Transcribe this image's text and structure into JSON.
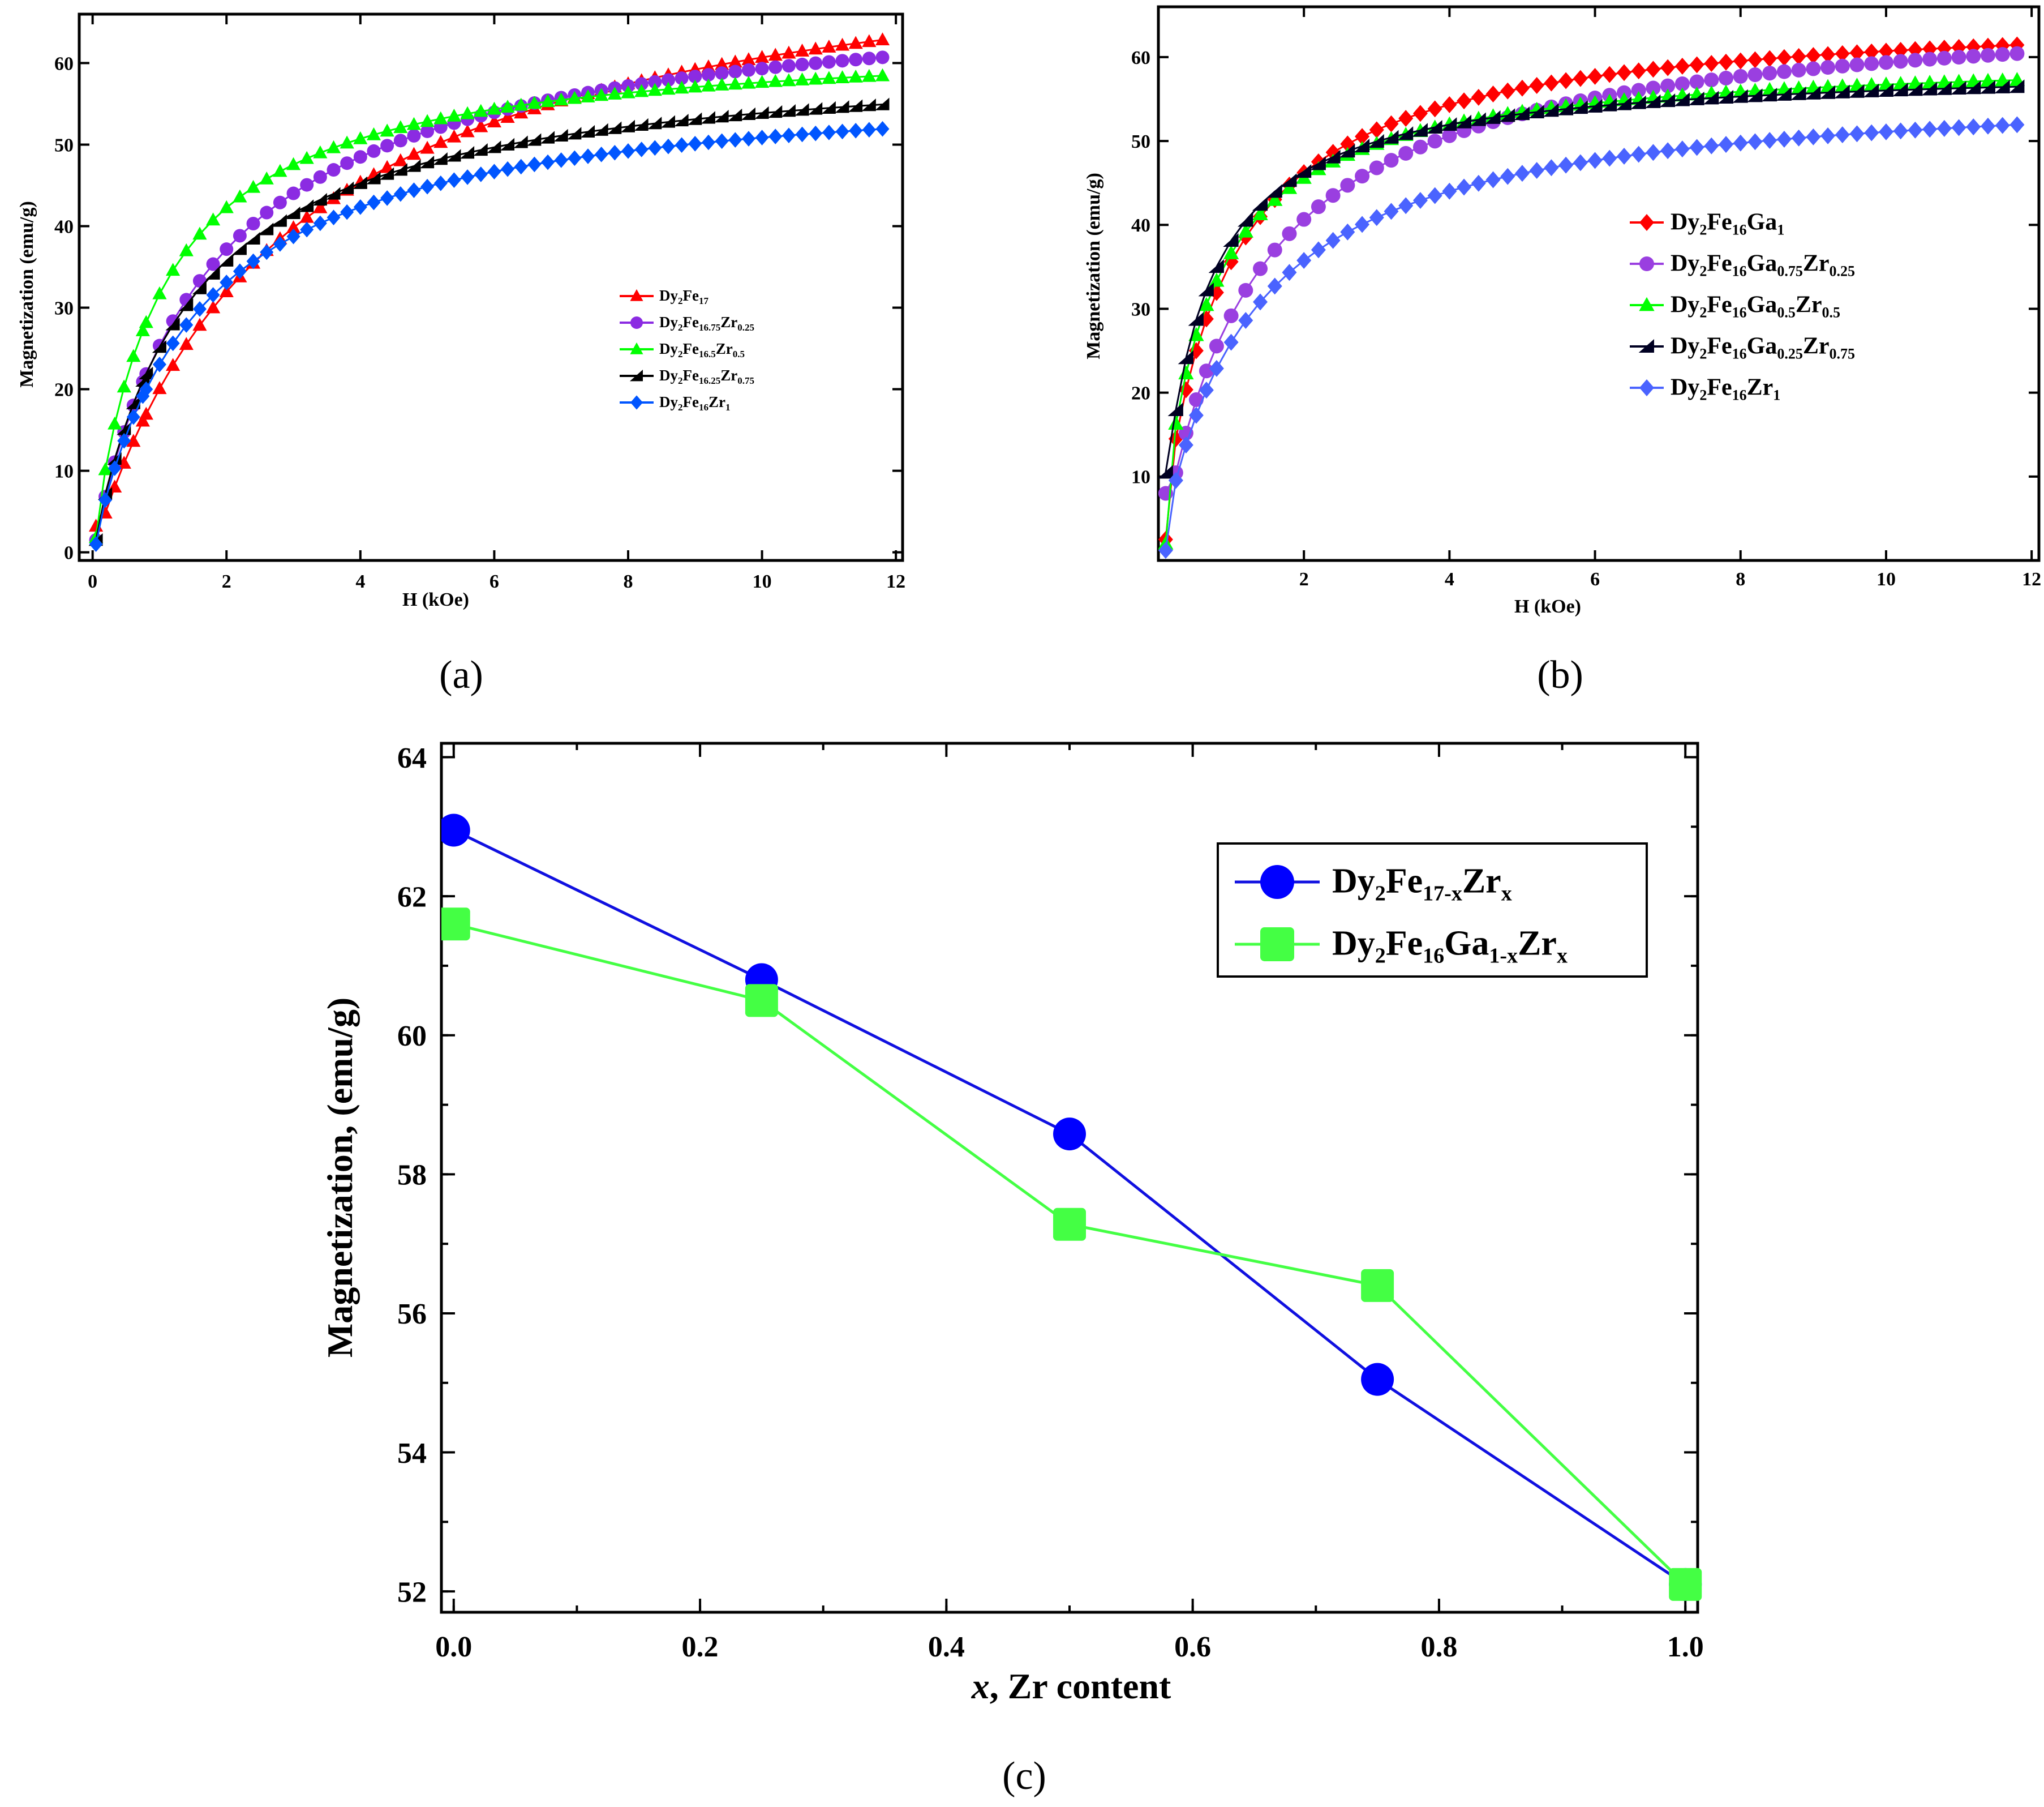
{
  "figure_captions": {
    "a": "(a)",
    "b": "(b)",
    "c": "(c)"
  },
  "chart_data": [
    {
      "id": "a",
      "type": "line",
      "title": "",
      "xlabel": "H (kOe)",
      "ylabel": "Magnetization (emu/g)",
      "xlim": [
        -0.2,
        12.1
      ],
      "ylim": [
        -1,
        66
      ],
      "xticks": [
        0,
        2,
        4,
        6,
        8,
        10,
        12
      ],
      "yticks": [
        0,
        10,
        20,
        30,
        40,
        50,
        60
      ],
      "legend_position": "center-right",
      "series": [
        {
          "name": "Dy2Fe17",
          "base": "Dy",
          "parts": [
            [
              "Dy",
              ""
            ],
            [
              "2",
              "sub"
            ],
            [
              "Fe",
              ""
            ],
            [
              "17",
              "sub"
            ]
          ],
          "color": "#ff0000",
          "marker": "triangle",
          "msat": 77.5,
          "hk": 2.9,
          "first": 3.2,
          "mend": 63.0
        },
        {
          "name": "Dy2Fe16.75Zr0.25",
          "parts": [
            [
              "Dy",
              ""
            ],
            [
              "2",
              "sub"
            ],
            [
              "Fe",
              ""
            ],
            [
              "16.75",
              "sub"
            ],
            [
              "Zr",
              ""
            ],
            [
              "0.25",
              "sub"
            ]
          ],
          "color": "#8b2be2",
          "marker": "circle",
          "msat": 68.5,
          "hk": 1.75,
          "first": 1.5,
          "mend": 60.8
        },
        {
          "name": "Dy2Fe16.5Zr0.5",
          "parts": [
            [
              "Dy",
              ""
            ],
            [
              "2",
              "sub"
            ],
            [
              "Fe",
              ""
            ],
            [
              "16.5",
              "sub"
            ],
            [
              "Zr",
              ""
            ],
            [
              "0.5",
              "sub"
            ]
          ],
          "color": "#00ff00",
          "marker": "triangle",
          "msat": 63.5,
          "hk": 1.0,
          "first": 1.8,
          "mend": 58.5
        },
        {
          "name": "Dy2Fe16.25Zr0.75",
          "parts": [
            [
              "Dy",
              ""
            ],
            [
              "2",
              "sub"
            ],
            [
              "Fe",
              ""
            ],
            [
              "16.25",
              "sub"
            ],
            [
              "Zr",
              ""
            ],
            [
              "0.75",
              "sub"
            ]
          ],
          "color": "#000000",
          "marker": "triangle-left",
          "msat": 62.0,
          "hk": 1.45,
          "first": 1.5,
          "mend": 55.0
        },
        {
          "name": "Dy2Fe16Zr1",
          "parts": [
            [
              "Dy",
              ""
            ],
            [
              "2",
              "sub"
            ],
            [
              "Fe",
              ""
            ],
            [
              "16",
              "sub"
            ],
            [
              "Zr",
              ""
            ],
            [
              "1",
              "sub"
            ]
          ],
          "color": "#0055ff",
          "marker": "diamond",
          "msat": 58.5,
          "hk": 1.55,
          "first": 1.0,
          "mend": 52.0
        }
      ]
    },
    {
      "id": "b",
      "type": "line",
      "title": "",
      "xlabel": "H (kOe)",
      "ylabel": "Magnetization (emu/g)",
      "xlim": [
        0.0,
        12.1
      ],
      "ylim": [
        0,
        66
      ],
      "xticks": [
        2,
        4,
        6,
        8,
        10,
        12
      ],
      "yticks": [
        10,
        20,
        30,
        40,
        50,
        60
      ],
      "legend_position": "center-right",
      "series": [
        {
          "name": "Dy2Fe16Ga1",
          "parts": [
            [
              "Dy",
              ""
            ],
            [
              "2",
              "sub"
            ],
            [
              "Fe",
              ""
            ],
            [
              "16",
              "sub"
            ],
            [
              "Ga",
              ""
            ],
            [
              "1",
              "sub"
            ]
          ],
          "color": "#ff0000",
          "marker": "diamond",
          "msat": 66.0,
          "hk": 0.85,
          "first": 2.5,
          "mend": 61.5
        },
        {
          "name": "Dy2Fe16Ga0.75Zr0.25",
          "parts": [
            [
              "Dy",
              ""
            ],
            [
              "2",
              "sub"
            ],
            [
              "Fe",
              ""
            ],
            [
              "16",
              "sub"
            ],
            [
              "Ga",
              ""
            ],
            [
              "0.75",
              "sub"
            ],
            [
              "Zr",
              ""
            ],
            [
              "0.25",
              "sub"
            ]
          ],
          "color": "#9a3fe0",
          "marker": "circle",
          "msat": 66.5,
          "hk": 1.3,
          "first": 8.0,
          "mend": 60.5
        },
        {
          "name": "Dy2Fe16Ga0.5Zr0.5",
          "parts": [
            [
              "Dy",
              ""
            ],
            [
              "2",
              "sub"
            ],
            [
              "Fe",
              ""
            ],
            [
              "16",
              "sub"
            ],
            [
              "Ga",
              ""
            ],
            [
              "0.5",
              "sub"
            ],
            [
              "Zr",
              ""
            ],
            [
              "0.5",
              "sub"
            ]
          ],
          "color": "#00ff00",
          "marker": "triangle",
          "msat": 61.0,
          "hk": 0.65,
          "first": 2.0,
          "mend": 57.3
        },
        {
          "name": "Dy2Fe16Ga0.25Zr0.75",
          "parts": [
            [
              "Dy",
              ""
            ],
            [
              "2",
              "sub"
            ],
            [
              "Fe",
              ""
            ],
            [
              "16",
              "sub"
            ],
            [
              "Ga",
              ""
            ],
            [
              "0.25",
              "sub"
            ],
            [
              "Zr",
              ""
            ],
            [
              "0.75",
              "sub"
            ]
          ],
          "color": "#000022",
          "marker": "triangle-left",
          "msat": 59.0,
          "hk": 0.55,
          "first": 10.5,
          "mend": 56.5
        },
        {
          "name": "Dy2Fe16Zr1",
          "parts": [
            [
              "Dy",
              ""
            ],
            [
              "2",
              "sub"
            ],
            [
              "Fe",
              ""
            ],
            [
              "16",
              "sub"
            ],
            [
              "Zr",
              ""
            ],
            [
              "1",
              "sub"
            ]
          ],
          "color": "#4a63ff",
          "marker": "diamond",
          "msat": 58.0,
          "hk": 1.2,
          "first": 1.2,
          "mend": 52.0
        }
      ]
    },
    {
      "id": "c",
      "type": "line",
      "title": "",
      "xlabel": "x, Zr content",
      "ylabel": "Magnetization, (emu/g)",
      "xlim": [
        -0.01,
        1.01
      ],
      "ylim": [
        51.7,
        64.2
      ],
      "xticks": [
        0.0,
        0.2,
        0.4,
        0.6,
        0.8,
        1.0
      ],
      "xticklabels": [
        "0.0",
        "0.2",
        "0.4",
        "0.6",
        "0.8",
        "1.0"
      ],
      "yticks": [
        52,
        54,
        56,
        58,
        60,
        62,
        64
      ],
      "legend_position": "top-right",
      "x": [
        0.0,
        0.25,
        0.5,
        0.75,
        1.0
      ],
      "series": [
        {
          "name": "Dy2Fe17-xZrx",
          "parts": [
            [
              "Dy",
              ""
            ],
            [
              "2",
              "sub"
            ],
            [
              "Fe",
              ""
            ],
            [
              "17-x",
              "sub"
            ],
            [
              "Zr",
              ""
            ],
            [
              "x",
              "sub"
            ]
          ],
          "color": "#0000ff",
          "line_color": "#1010e0",
          "marker": "circle",
          "values": [
            62.95,
            60.8,
            58.58,
            55.05,
            52.1
          ]
        },
        {
          "name": "Dy2Fe16Ga1-xZrx",
          "parts": [
            [
              "Dy",
              ""
            ],
            [
              "2",
              "sub"
            ],
            [
              "Fe",
              ""
            ],
            [
              "16",
              "sub"
            ],
            [
              "Ga",
              ""
            ],
            [
              "1-x",
              "sub"
            ],
            [
              "Zr",
              ""
            ],
            [
              "x",
              "sub"
            ]
          ],
          "color": "#44ff44",
          "line_color": "#44ff44",
          "marker": "square",
          "values": [
            61.6,
            60.5,
            57.28,
            56.4,
            52.1
          ]
        }
      ]
    }
  ]
}
